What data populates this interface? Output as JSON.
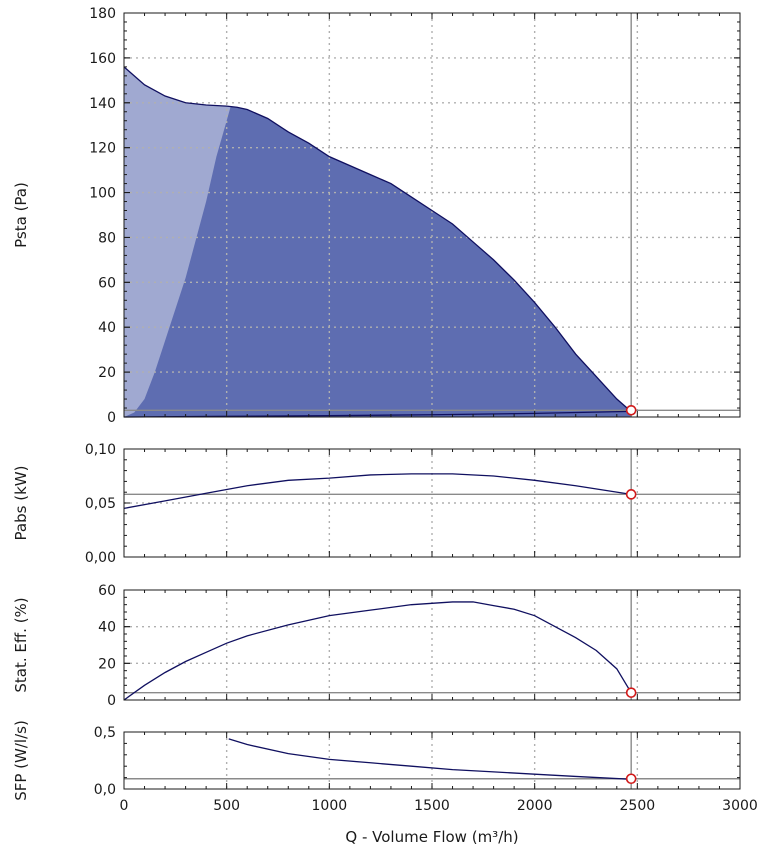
{
  "colors": {
    "region_light": "#a0a9d1",
    "region_dark": "#5e6db1",
    "curve": "#101060",
    "operating_point": "#d11a1a",
    "grid": "#b0b0b0"
  },
  "chart_data": [
    {
      "type": "area",
      "ylabel": "Psta (Pa)",
      "xlim": [
        0,
        3000
      ],
      "ylim": [
        0,
        180
      ],
      "x_ticks": [
        500,
        1000,
        1500,
        2000,
        2500,
        3000
      ],
      "y_ticks": [
        "0",
        "20",
        "40",
        "60",
        "80",
        "100",
        "120",
        "140",
        "160",
        "180"
      ],
      "grid": true,
      "series": [
        {
          "x": [
            0,
            50,
            100,
            200,
            300,
            400,
            500,
            550,
            600,
            700,
            800,
            900,
            1000,
            1100,
            1200,
            1300,
            1400,
            1500,
            1600,
            1700,
            1800,
            1900,
            2000,
            2100,
            2200,
            2300,
            2350,
            2400,
            2450,
            2470
          ],
          "values": [
            156,
            152,
            148,
            143,
            140,
            139,
            138.5,
            138,
            137,
            133,
            127,
            122,
            116,
            112,
            108,
            104,
            98,
            92,
            86,
            78,
            70,
            61,
            51,
            40,
            28,
            18,
            13,
            8,
            4,
            2.5
          ]
        },
        {
          "x": [
            0,
            500,
            1000,
            1500,
            2000,
            2470
          ],
          "values": [
            0,
            0.3,
            0.6,
            1.0,
            1.6,
            2.5
          ]
        },
        {
          "x": [
            0,
            50,
            100,
            150,
            200,
            300,
            400,
            450,
            500,
            520
          ],
          "values": [
            0,
            2,
            8,
            20,
            34,
            62,
            96,
            116,
            132,
            138.5
          ]
        }
      ],
      "operating_point": {
        "x": 2470,
        "y": 3
      },
      "reference_lines": {
        "x": 2470,
        "y": 3
      }
    },
    {
      "type": "line",
      "ylabel": "Pabs (kW)",
      "xlim": [
        0,
        3000
      ],
      "ylim": [
        0,
        0.1
      ],
      "y_ticks": [
        "0,00",
        "0,05",
        "0,10"
      ],
      "grid": true,
      "series": [
        {
          "x": [
            0,
            200,
            400,
            600,
            800,
            1000,
            1200,
            1400,
            1600,
            1800,
            2000,
            2200,
            2470
          ],
          "values": [
            0.045,
            0.052,
            0.059,
            0.066,
            0.071,
            0.073,
            0.076,
            0.077,
            0.077,
            0.075,
            0.071,
            0.066,
            0.058
          ]
        }
      ],
      "operating_point": {
        "x": 2470,
        "y": 0.058
      },
      "reference_lines": {
        "x": 2470,
        "y": 0.058
      }
    },
    {
      "type": "line",
      "ylabel": "Stat. Eff. (%)",
      "xlim": [
        0,
        3000
      ],
      "ylim": [
        0,
        60
      ],
      "y_ticks": [
        "0",
        "20",
        "40",
        "60"
      ],
      "grid": true,
      "series": [
        {
          "x": [
            0,
            100,
            200,
            300,
            400,
            500,
            600,
            800,
            1000,
            1200,
            1400,
            1600,
            1700,
            1800,
            1900,
            2000,
            2100,
            2200,
            2300,
            2400,
            2470
          ],
          "values": [
            0,
            8,
            15,
            21,
            26,
            31,
            35,
            41,
            46,
            49,
            52,
            53.5,
            53.5,
            51.5,
            49.5,
            46,
            40,
            34,
            27,
            17,
            4
          ]
        }
      ],
      "operating_point": {
        "x": 2470,
        "y": 4
      },
      "reference_lines": {
        "x": 2470,
        "y": 4
      }
    },
    {
      "type": "line",
      "ylabel": "SFP (W/l/s)",
      "xlabel": "Q - Volume Flow (m³/h)",
      "xlim": [
        0,
        3000
      ],
      "ylim": [
        0,
        0.5
      ],
      "x_ticks": [
        "0",
        "500",
        "1000",
        "1500",
        "2000",
        "2500",
        "3000"
      ],
      "y_ticks": [
        "0,0",
        "0,5"
      ],
      "grid": true,
      "series": [
        {
          "x": [
            510,
            600,
            800,
            1000,
            1200,
            1400,
            1600,
            1800,
            2000,
            2200,
            2470
          ],
          "values": [
            0.44,
            0.39,
            0.31,
            0.26,
            0.23,
            0.2,
            0.17,
            0.15,
            0.13,
            0.11,
            0.085
          ]
        }
      ],
      "operating_point": {
        "x": 2470,
        "y": 0.09
      },
      "reference_lines": {
        "x": 2470,
        "y": 0.09
      }
    }
  ]
}
